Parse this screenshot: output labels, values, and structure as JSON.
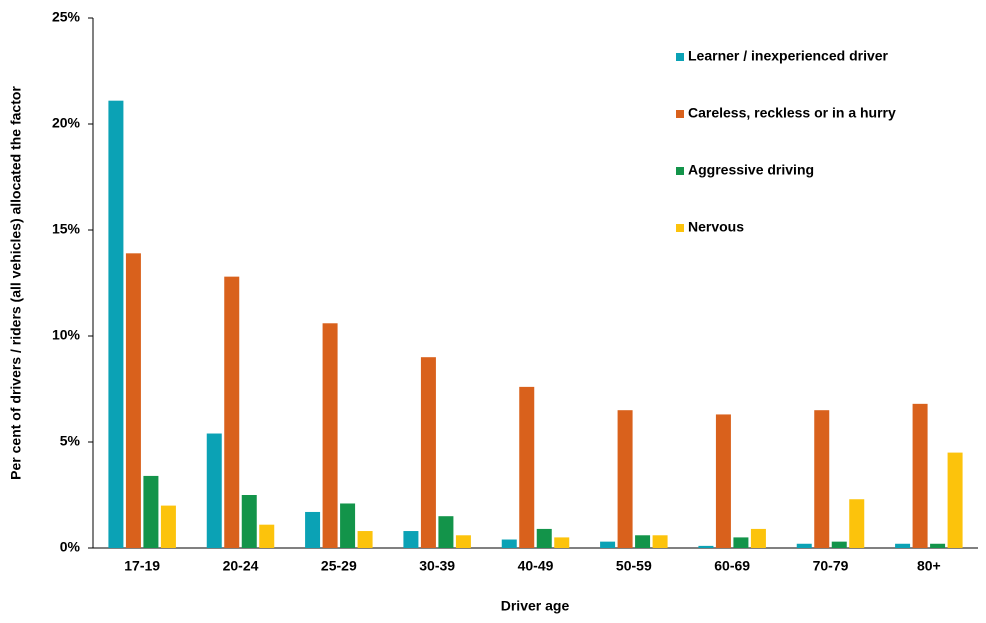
{
  "chart_data": {
    "type": "bar",
    "x_label": "Driver age",
    "y_label": "Per cent of drivers / riders (all vehicles) allocated the factor",
    "categories": [
      "17-19",
      "20-24",
      "25-29",
      "30-39",
      "40-49",
      "50-59",
      "60-69",
      "70-79",
      "80+"
    ],
    "series": [
      {
        "name": "Learner / inexperienced driver",
        "color": "#0ba2b5",
        "values": [
          21.1,
          5.4,
          1.7,
          0.8,
          0.4,
          0.3,
          0.1,
          0.2,
          0.2
        ]
      },
      {
        "name": "Careless, reckless or in a hurry",
        "color": "#d9611c",
        "values": [
          13.9,
          12.8,
          10.6,
          9.0,
          7.6,
          6.5,
          6.3,
          6.5,
          6.8
        ]
      },
      {
        "name": "Aggressive driving",
        "color": "#13944a",
        "values": [
          3.4,
          2.5,
          2.1,
          1.5,
          0.9,
          0.6,
          0.5,
          0.3,
          0.2
        ]
      },
      {
        "name": "Nervous",
        "color": "#fcc30c",
        "values": [
          2.0,
          1.1,
          0.8,
          0.6,
          0.5,
          0.6,
          0.9,
          2.3,
          4.5
        ]
      }
    ],
    "ylim": [
      0,
      25
    ],
    "yticks": [
      {
        "value": 0,
        "label": "0%"
      },
      {
        "value": 5,
        "label": "5%"
      },
      {
        "value": 10,
        "label": "10%"
      },
      {
        "value": 15,
        "label": "15%"
      },
      {
        "value": 20,
        "label": "20%"
      },
      {
        "value": 25,
        "label": "25%"
      }
    ],
    "legend": "top-right"
  }
}
